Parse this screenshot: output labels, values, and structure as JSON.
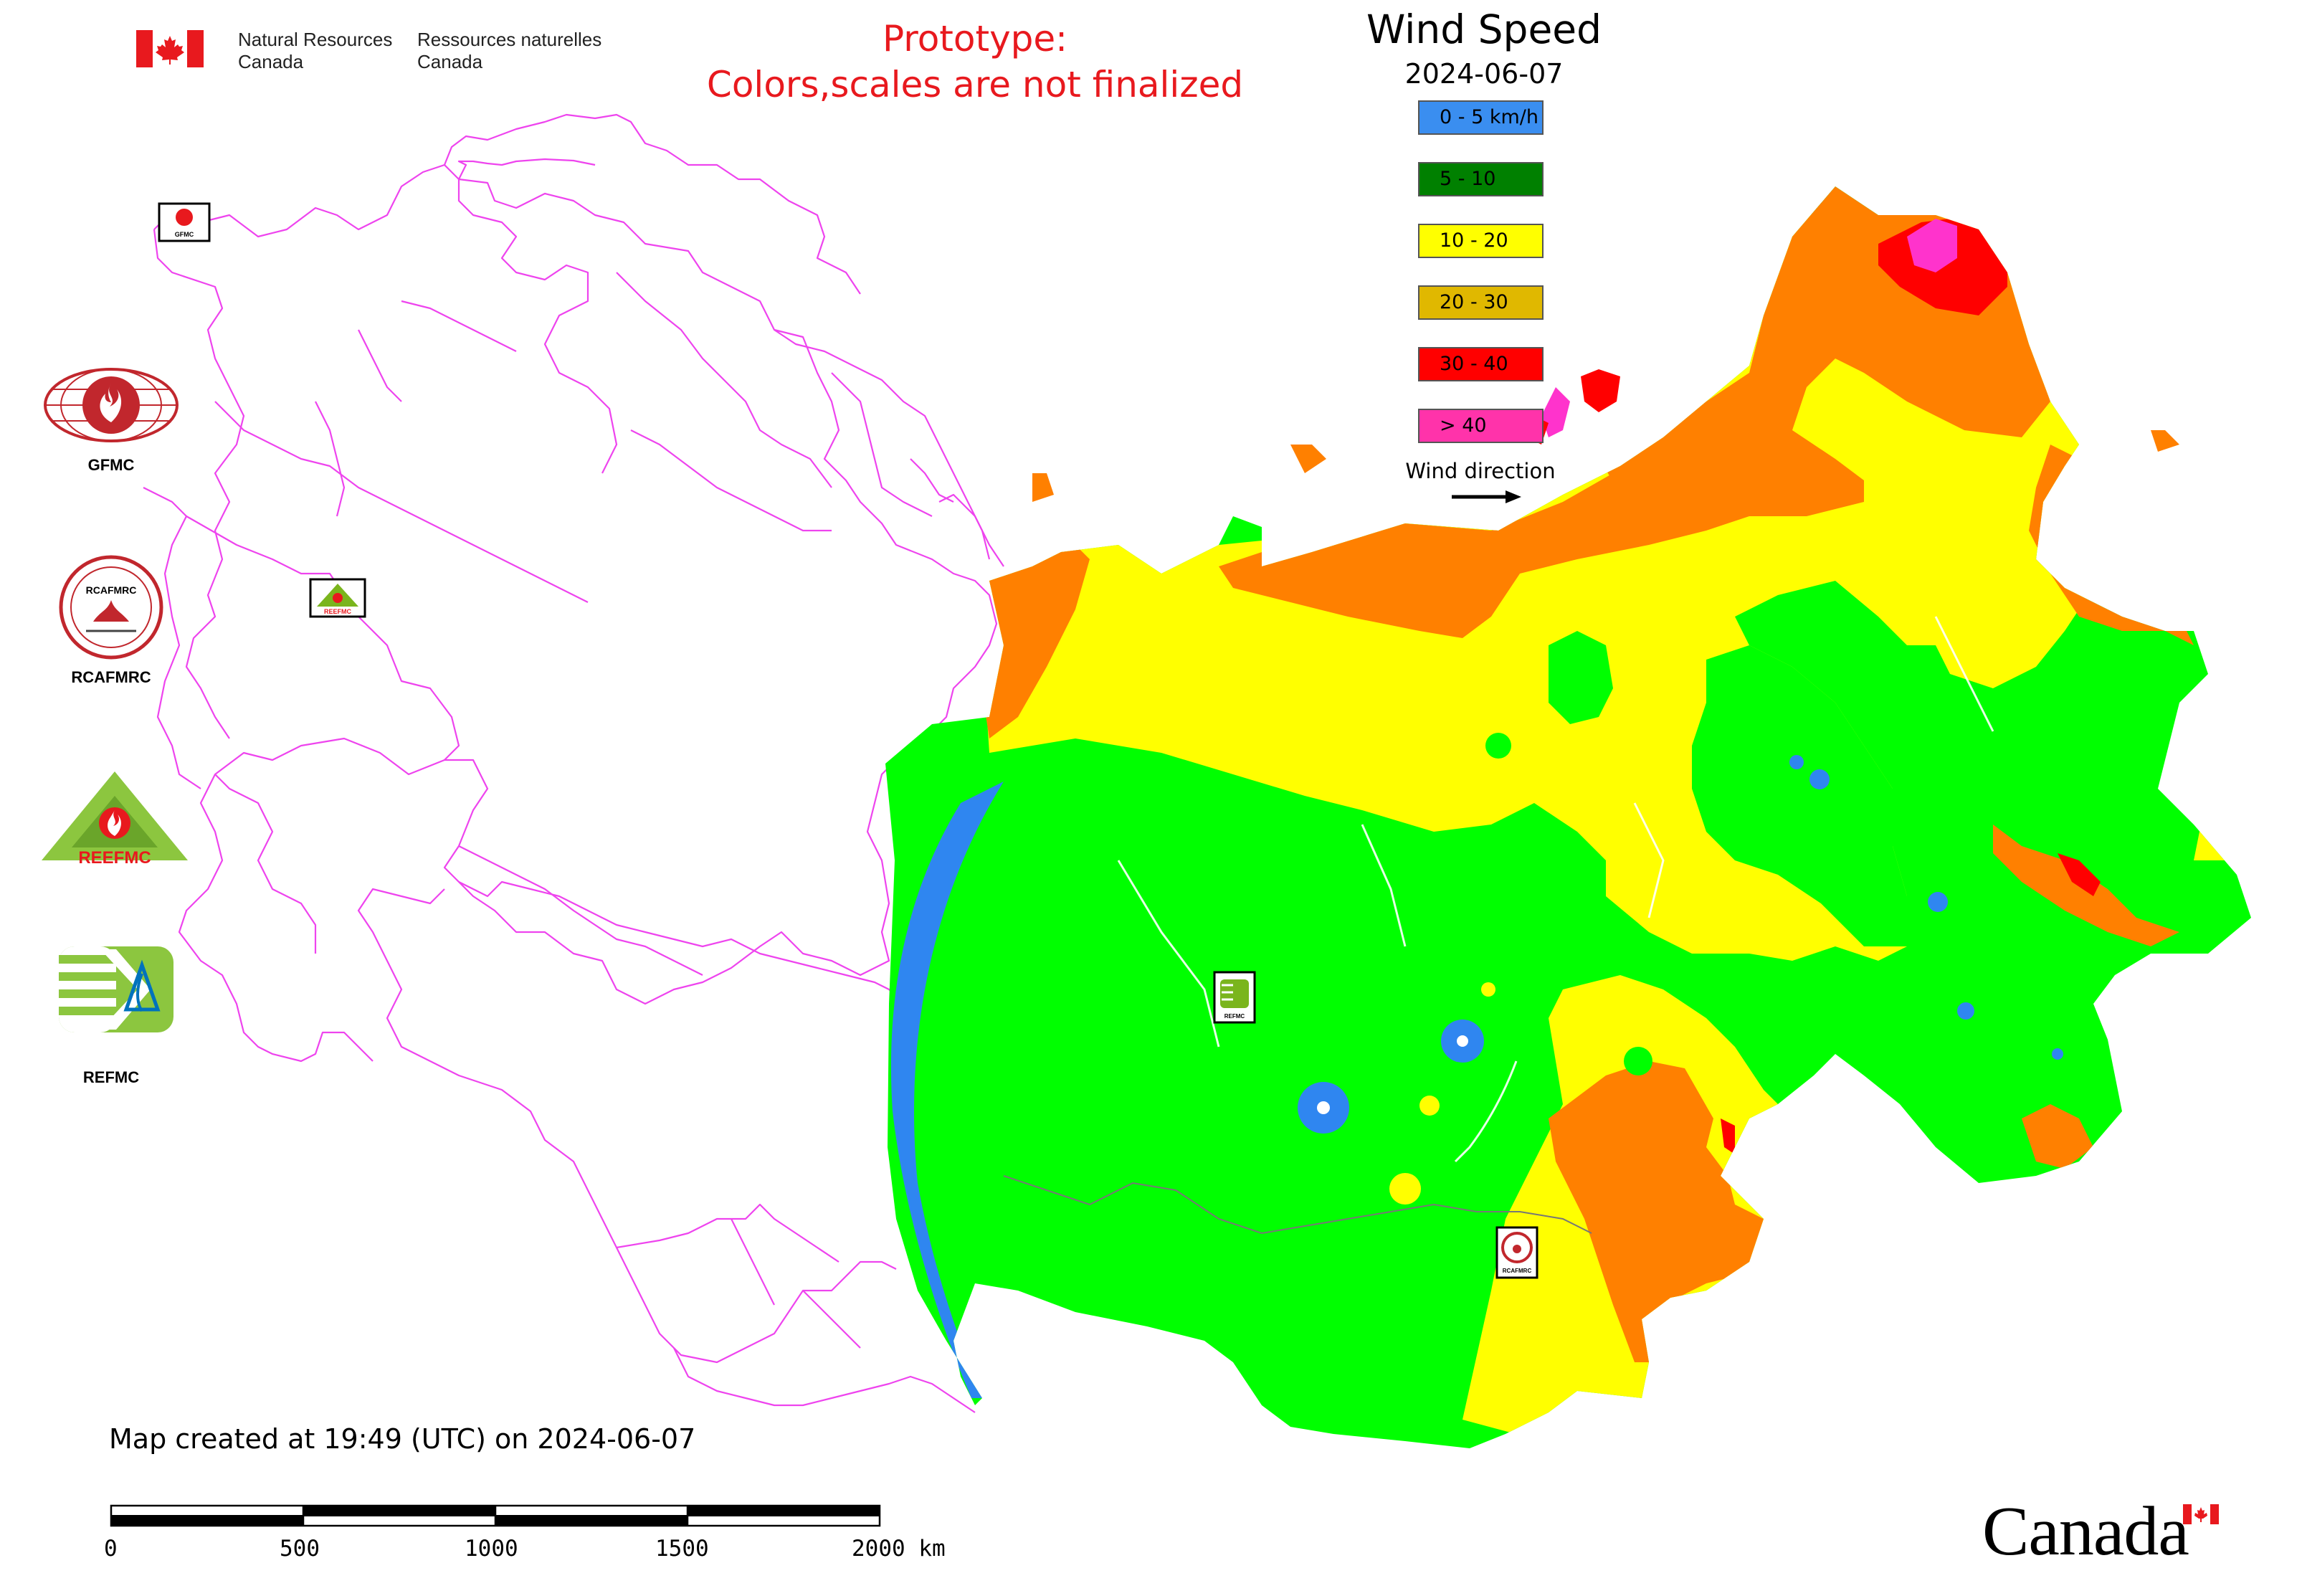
{
  "header": {
    "dept_en_line1": "Natural Resources",
    "dept_en_line2": "Canada",
    "dept_fr_line1": "Ressources naturelles",
    "dept_fr_line2": "Canada",
    "prototype_line1": "Prototype:",
    "prototype_line2": "Colors,scales are not finalized"
  },
  "legend": {
    "title": "Wind Speed",
    "date": "2024-06-07",
    "items": [
      {
        "label": "0 - 5 km/h",
        "color": "#3a8ef0"
      },
      {
        "label": "5 - 10",
        "color": "#008000"
      },
      {
        "label": "10 - 20",
        "color": "#ffff00"
      },
      {
        "label": "20 - 30",
        "color": "#e0b800"
      },
      {
        "label": "30 - 40",
        "color": "#ff0000"
      },
      {
        "label": "> 40",
        "color": "#ff33aa"
      }
    ],
    "wind_direction_label": "Wind direction"
  },
  "map_colors": {
    "calm": "#2f86f0",
    "low": "#00ff00",
    "moderate": "#ffff00",
    "strong": "#ff8000",
    "very_strong": "#ff0000",
    "extreme": "#ff33cc",
    "border": "#ee44ee"
  },
  "logos": [
    {
      "name": "GFMC",
      "label": "GFMC"
    },
    {
      "name": "RCAFMRC",
      "label": "RCAFMRC",
      "ring_text": "RCAFMRC"
    },
    {
      "name": "REEFMC",
      "label": "REEFMC"
    },
    {
      "name": "REFMC",
      "label": "REFMC"
    }
  ],
  "map_markers": [
    {
      "name": "GFMC",
      "label": "GFMC"
    },
    {
      "name": "REEFMC",
      "label": "REEFMC"
    },
    {
      "name": "REFMC",
      "label": "REFMC"
    },
    {
      "name": "RCAFMRC",
      "label": "RCAFMRC"
    }
  ],
  "footer": {
    "created": "Map created at 19:49 (UTC) on 2024-06-07",
    "scale_labels": [
      "0",
      "500",
      "1000",
      "1500",
      "2000 km"
    ],
    "wordmark": "Canada"
  }
}
